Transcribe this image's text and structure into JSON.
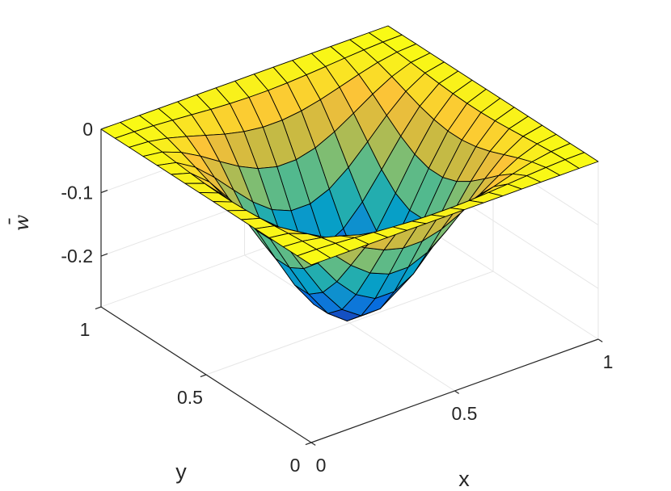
{
  "chart_data": {
    "type": "surface",
    "title": "",
    "xlabel": "x",
    "ylabel": "y",
    "zlabel": "w",
    "zlabel_accent": "¯",
    "xlim": [
      0,
      1
    ],
    "ylim": [
      0,
      1
    ],
    "zlim": [
      -0.28,
      0
    ],
    "grid": true,
    "colormap": "parula",
    "edge_color": "#000000",
    "x_ticks": [
      {
        "value": 0,
        "label": "0"
      },
      {
        "value": 0.5,
        "label": "0.5"
      },
      {
        "value": 1,
        "label": "1"
      }
    ],
    "y_ticks": [
      {
        "value": 0,
        "label": "0"
      },
      {
        "value": 0.5,
        "label": "0.5"
      },
      {
        "value": 1,
        "label": "1"
      }
    ],
    "z_ticks": [
      {
        "value": 0,
        "label": "0"
      },
      {
        "value": -0.1,
        "label": "-0.1"
      },
      {
        "value": -0.2,
        "label": "-0.2"
      }
    ],
    "surface": {
      "grid_points": 16,
      "x_range": [
        0,
        1
      ],
      "y_range": [
        0,
        1
      ],
      "center_value": -0.27,
      "edge_value": 0,
      "description_formula": "w = center_value * sin(pi*x)^2 * sin(pi*y)^2"
    }
  }
}
